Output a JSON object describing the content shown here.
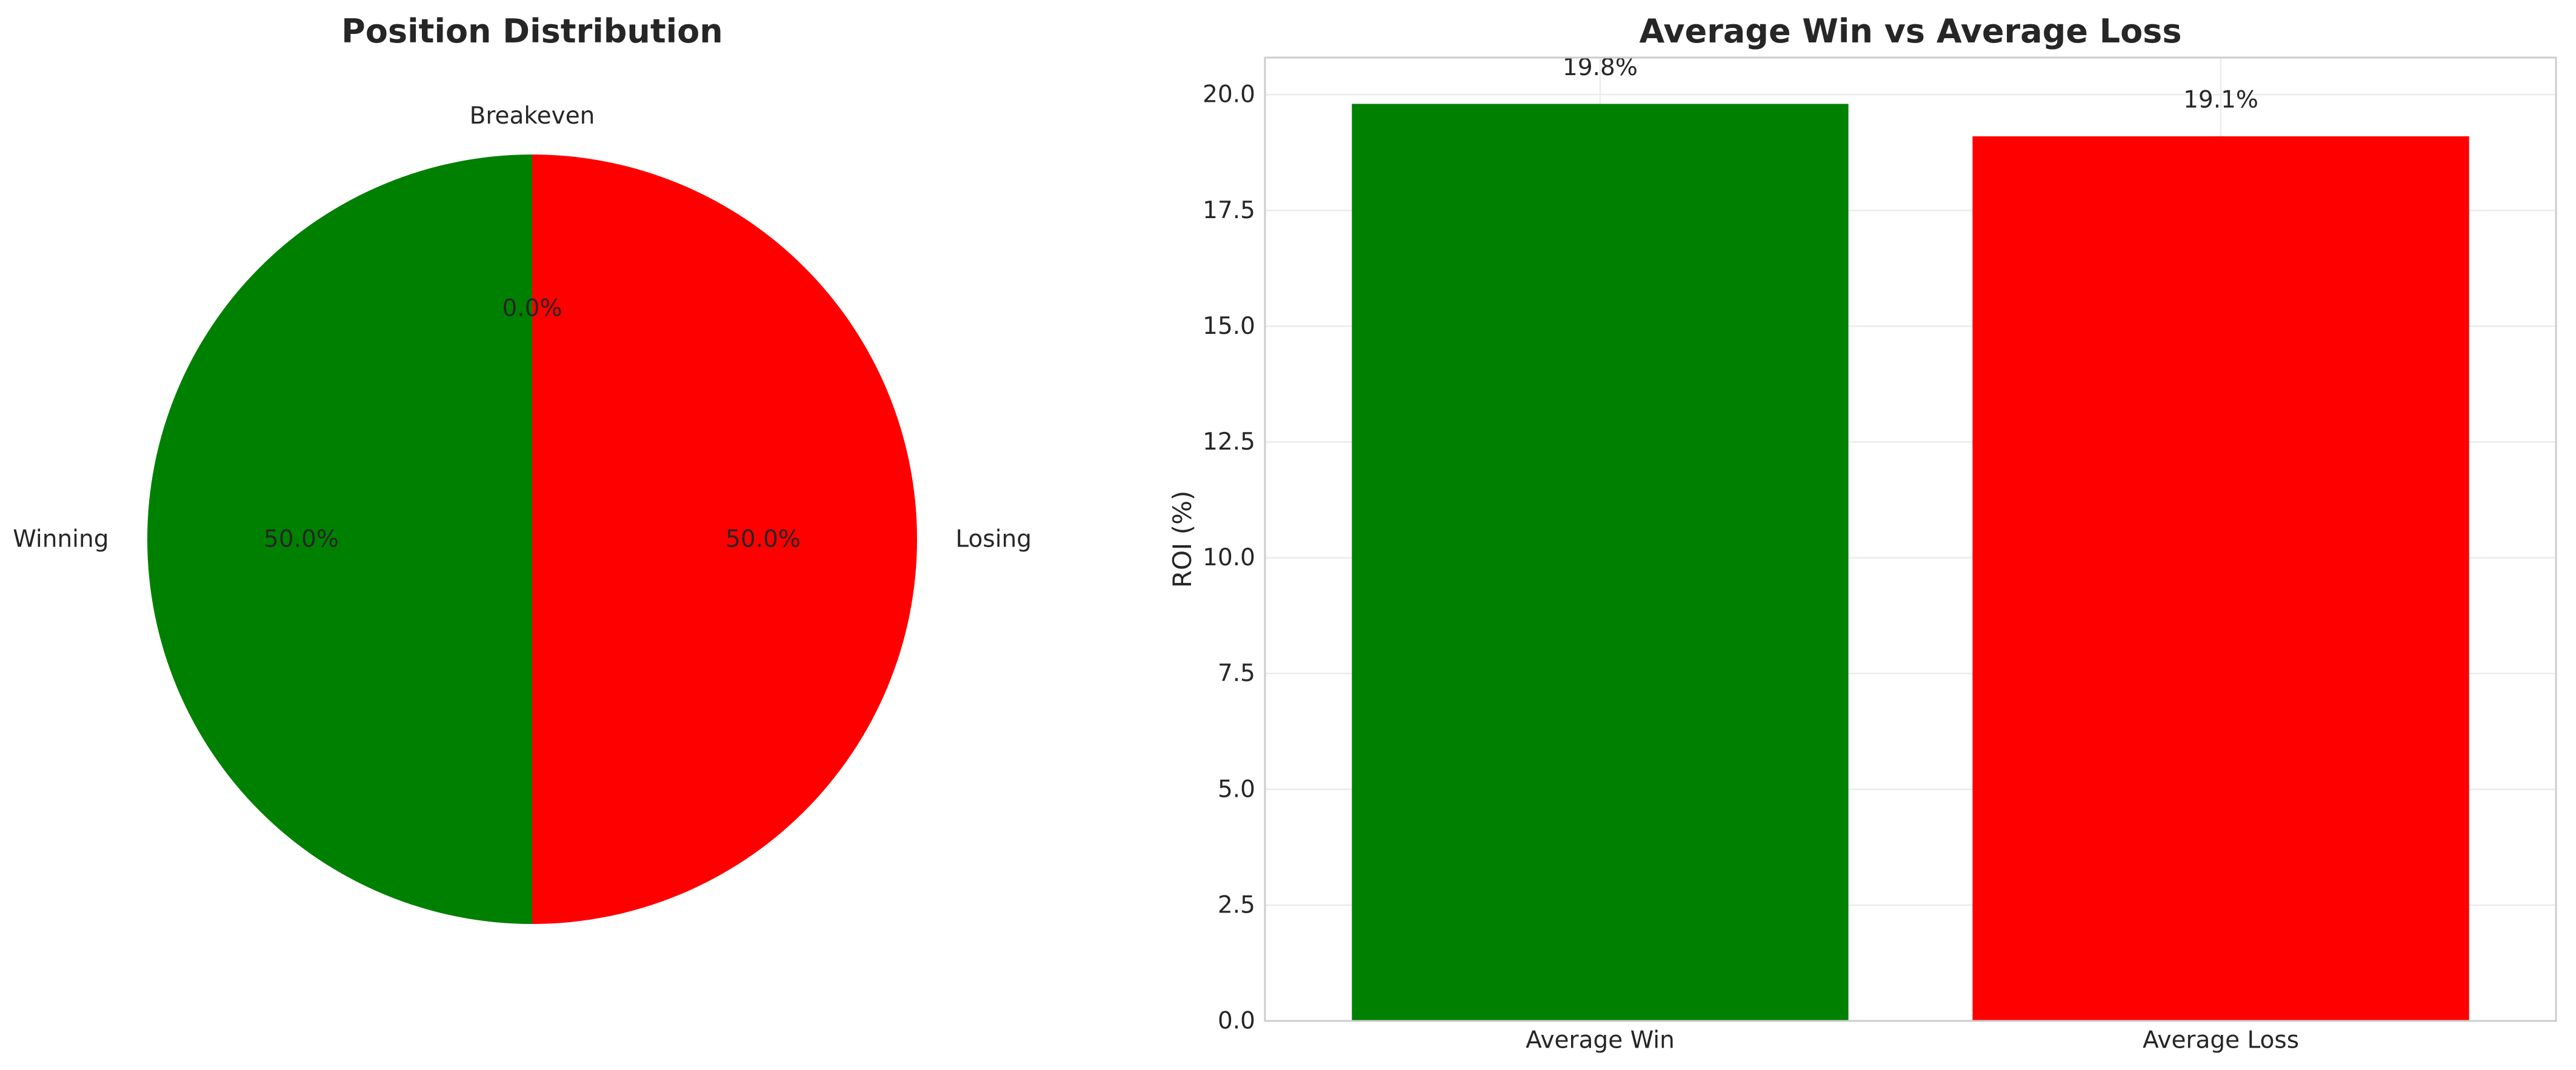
{
  "chart_data": [
    {
      "type": "pie",
      "title": "Position Distribution",
      "slices": [
        {
          "label": "Winning",
          "value": 50.0,
          "pct_label": "50.0%",
          "color": "#008000"
        },
        {
          "label": "Losing",
          "value": 50.0,
          "pct_label": "50.0%",
          "color": "#ff0000"
        },
        {
          "label": "Breakeven",
          "value": 0.0,
          "pct_label": "0.0%",
          "color": "#808080"
        }
      ]
    },
    {
      "type": "bar",
      "title": "Average Win vs Average Loss",
      "categories": [
        "Average Win",
        "Average Loss"
      ],
      "values": [
        19.8,
        19.1
      ],
      "value_labels": [
        "19.8%",
        "19.1%"
      ],
      "colors": [
        "#008000",
        "#ff0000"
      ],
      "xlabel": "",
      "ylabel": "ROI (%)",
      "ylim": [
        0,
        20.8
      ],
      "yticks": [
        "0.0",
        "2.5",
        "5.0",
        "7.5",
        "10.0",
        "12.5",
        "15.0",
        "17.5",
        "20.0"
      ],
      "grid": true
    }
  ]
}
